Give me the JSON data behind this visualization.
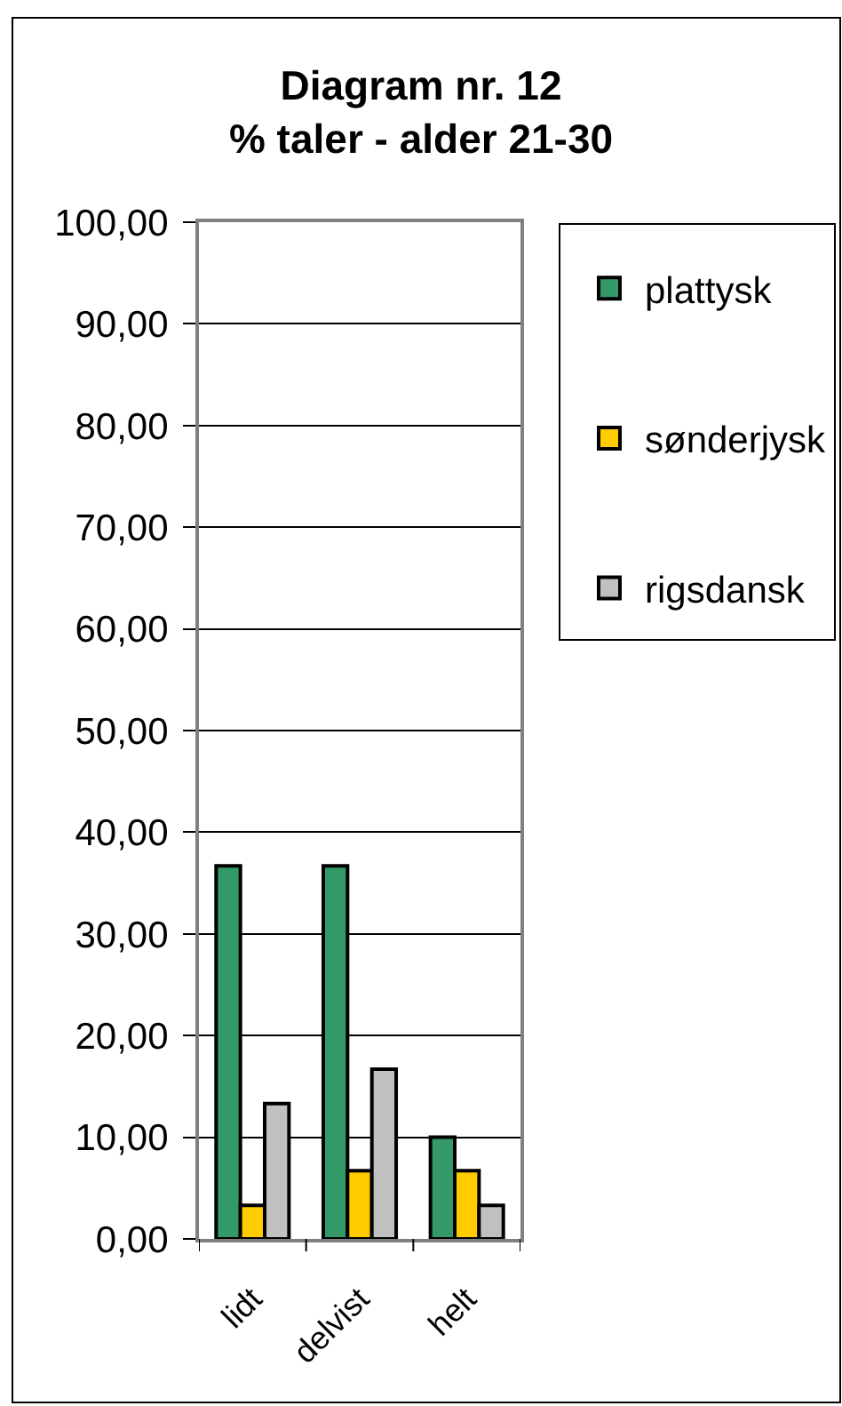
{
  "chart_data": {
    "type": "bar",
    "title": "Diagram nr. 12\n% taler - alder 21-30",
    "categories": [
      "lidt",
      "delvist",
      "helt"
    ],
    "series": [
      {
        "name": "plattysk",
        "color": "#339966",
        "values": [
          36.7,
          36.7,
          10.0
        ]
      },
      {
        "name": "sønderjysk",
        "color": "#ffcc00",
        "values": [
          3.3,
          6.7,
          6.7
        ]
      },
      {
        "name": "rigsdansk",
        "color": "#c0c0c0",
        "values": [
          13.3,
          16.7,
          3.3
        ]
      }
    ],
    "ylim": [
      0,
      100
    ],
    "yticks": [
      {
        "value": 0,
        "label": "0,00"
      },
      {
        "value": 10,
        "label": "10,00"
      },
      {
        "value": 20,
        "label": "20,00"
      },
      {
        "value": 30,
        "label": "30,00"
      },
      {
        "value": 40,
        "label": "40,00"
      },
      {
        "value": 50,
        "label": "50,00"
      },
      {
        "value": 60,
        "label": "60,00"
      },
      {
        "value": 70,
        "label": "70,00"
      },
      {
        "value": 80,
        "label": "80,00"
      },
      {
        "value": 90,
        "label": "90,00"
      },
      {
        "value": 100,
        "label": "100,00"
      }
    ],
    "grid": "y",
    "legend": "right"
  }
}
